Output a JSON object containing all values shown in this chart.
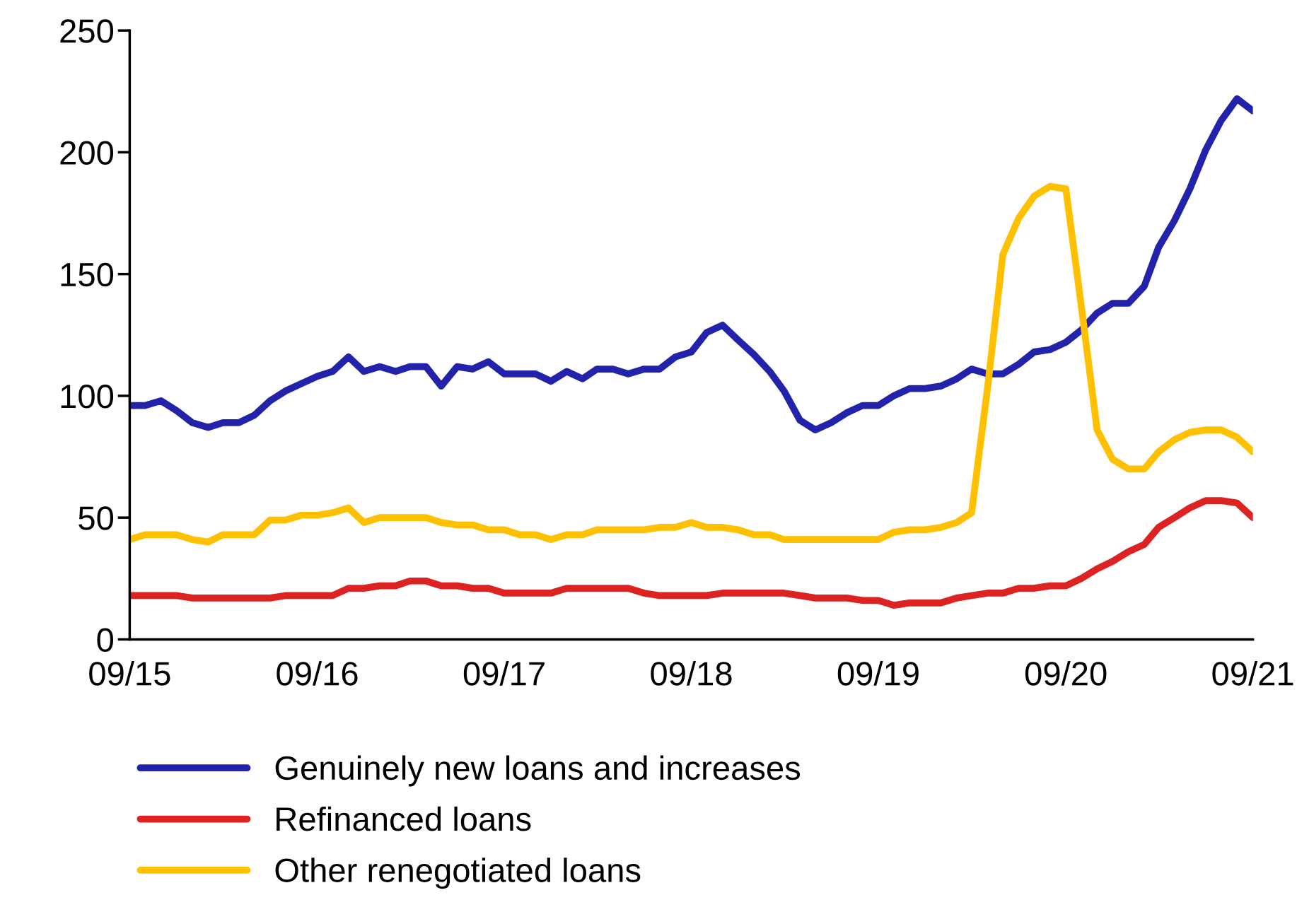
{
  "chart_data": {
    "type": "line",
    "x": [
      "2015-09",
      "2015-10",
      "2015-11",
      "2015-12",
      "2016-01",
      "2016-02",
      "2016-03",
      "2016-04",
      "2016-05",
      "2016-06",
      "2016-07",
      "2016-08",
      "2016-09",
      "2016-10",
      "2016-11",
      "2016-12",
      "2017-01",
      "2017-02",
      "2017-03",
      "2017-04",
      "2017-05",
      "2017-06",
      "2017-07",
      "2017-08",
      "2017-09",
      "2017-10",
      "2017-11",
      "2017-12",
      "2018-01",
      "2018-02",
      "2018-03",
      "2018-04",
      "2018-05",
      "2018-06",
      "2018-07",
      "2018-08",
      "2018-09",
      "2018-10",
      "2018-11",
      "2018-12",
      "2019-01",
      "2019-02",
      "2019-03",
      "2019-04",
      "2019-05",
      "2019-06",
      "2019-07",
      "2019-08",
      "2019-09",
      "2019-10",
      "2019-11",
      "2019-12",
      "2020-01",
      "2020-02",
      "2020-03",
      "2020-04",
      "2020-05",
      "2020-06",
      "2020-07",
      "2020-08",
      "2020-09",
      "2020-10",
      "2020-11",
      "2020-12",
      "2021-01",
      "2021-02",
      "2021-03",
      "2021-04",
      "2021-05",
      "2021-06",
      "2021-07",
      "2021-08",
      "2021-09"
    ],
    "series": [
      {
        "name": "Genuinely new loans and increases",
        "color": "#2222aa",
        "values": [
          96,
          96,
          98,
          94,
          89,
          87,
          89,
          89,
          92,
          98,
          102,
          105,
          108,
          110,
          116,
          110,
          112,
          110,
          112,
          112,
          104,
          112,
          111,
          114,
          109,
          109,
          109,
          106,
          110,
          107,
          111,
          111,
          109,
          111,
          111,
          116,
          118,
          126,
          129,
          123,
          117,
          110,
          102,
          90,
          86,
          89,
          93,
          96,
          96,
          100,
          103,
          103,
          104,
          107,
          111,
          109,
          109,
          113,
          118,
          119,
          122,
          127,
          134,
          138,
          138,
          145,
          161,
          172,
          185,
          201,
          213,
          222,
          217
        ]
      },
      {
        "name": "Refinanced loans",
        "color": "#dd2222",
        "values": [
          18,
          18,
          18,
          18,
          17,
          17,
          17,
          17,
          17,
          17,
          18,
          18,
          18,
          18,
          21,
          21,
          22,
          22,
          24,
          24,
          22,
          22,
          21,
          21,
          19,
          19,
          19,
          19,
          21,
          21,
          21,
          21,
          21,
          19,
          18,
          18,
          18,
          18,
          19,
          19,
          19,
          19,
          19,
          18,
          17,
          17,
          17,
          16,
          16,
          14,
          15,
          15,
          15,
          17,
          18,
          19,
          19,
          21,
          21,
          22,
          22,
          25,
          29,
          32,
          36,
          39,
          46,
          50,
          54,
          57,
          57,
          56,
          50
        ]
      },
      {
        "name": "Other renegotiated loans",
        "color": "#ffc000",
        "values": [
          41,
          43,
          43,
          43,
          41,
          40,
          43,
          43,
          43,
          49,
          49,
          51,
          51,
          52,
          54,
          48,
          50,
          50,
          50,
          50,
          48,
          47,
          47,
          45,
          45,
          43,
          43,
          41,
          43,
          43,
          45,
          45,
          45,
          45,
          46,
          46,
          48,
          46,
          46,
          45,
          43,
          43,
          41,
          41,
          41,
          41,
          41,
          41,
          41,
          44,
          45,
          45,
          46,
          48,
          52,
          103,
          158,
          173,
          182,
          186,
          185,
          137,
          86,
          74,
          70,
          70,
          77,
          82,
          85,
          86,
          86,
          83,
          77
        ]
      }
    ],
    "xlim": [
      "2015-09",
      "2021-09"
    ],
    "xticks": [
      {
        "value": "2015-09",
        "label": "09/15"
      },
      {
        "value": "2016-09",
        "label": "09/16"
      },
      {
        "value": "2017-09",
        "label": "09/17"
      },
      {
        "value": "2018-09",
        "label": "09/18"
      },
      {
        "value": "2019-09",
        "label": "09/19"
      },
      {
        "value": "2020-09",
        "label": "09/20"
      },
      {
        "value": "2021-09",
        "label": "09/21"
      }
    ],
    "ylim": [
      0,
      250
    ],
    "yticks": [
      0,
      50,
      100,
      150,
      200,
      250
    ],
    "grid": false,
    "legend": "bottom",
    "marker": "none",
    "line_style": "solid"
  }
}
